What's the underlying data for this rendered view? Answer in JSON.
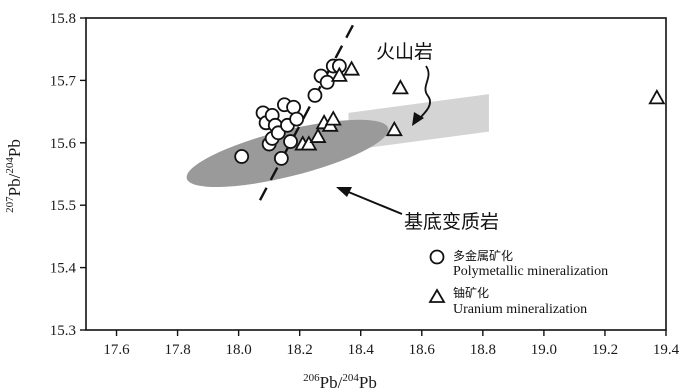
{
  "chart_data": {
    "type": "scatter",
    "x_axis": {
      "label_iso": "206",
      "label_elem": "Pb/",
      "label_iso2": "204",
      "label_elem2": "Pb",
      "range": [
        17.5,
        19.4
      ],
      "ticks": [
        "17.6",
        "17.8",
        "18.0",
        "18.2",
        "18.4",
        "18.6",
        "18.8",
        "19.0",
        "19.2",
        "19.4"
      ]
    },
    "y_axis": {
      "label_iso": "207",
      "label_elem": "Pb/",
      "label_iso2": "204",
      "label_elem2": "Pb",
      "range": [
        15.3,
        15.8
      ],
      "ticks": [
        "15.3",
        "15.4",
        "15.5",
        "15.6",
        "15.7",
        "15.8"
      ]
    },
    "series": [
      {
        "name": "多金属矿化 Polymetallic mineralization",
        "marker": "circle",
        "points": [
          [
            18.01,
            15.578
          ],
          [
            18.08,
            15.648
          ],
          [
            18.09,
            15.632
          ],
          [
            18.1,
            15.598
          ],
          [
            18.11,
            15.607
          ],
          [
            18.11,
            15.644
          ],
          [
            18.12,
            15.628
          ],
          [
            18.13,
            15.616
          ],
          [
            18.14,
            15.575
          ],
          [
            18.15,
            15.661
          ],
          [
            18.16,
            15.628
          ],
          [
            18.17,
            15.602
          ],
          [
            18.18,
            15.657
          ],
          [
            18.19,
            15.638
          ],
          [
            18.25,
            15.676
          ],
          [
            18.27,
            15.707
          ],
          [
            18.29,
            15.697
          ],
          [
            18.31,
            15.723
          ],
          [
            18.33,
            15.723
          ]
        ]
      },
      {
        "name": "铀矿化 Uranium mineralization",
        "marker": "triangle",
        "points": [
          [
            18.21,
            15.598
          ],
          [
            18.23,
            15.598
          ],
          [
            18.26,
            15.61
          ],
          [
            18.28,
            15.632
          ],
          [
            18.3,
            15.628
          ],
          [
            18.31,
            15.638
          ],
          [
            18.33,
            15.708
          ],
          [
            18.37,
            15.718
          ],
          [
            18.51,
            15.621
          ],
          [
            18.53,
            15.688
          ],
          [
            19.37,
            15.672
          ]
        ]
      }
    ],
    "fields": [
      {
        "name": "火山岩",
        "color": "#d4d4d4",
        "polygon": [
          [
            18.36,
            15.648
          ],
          [
            18.82,
            15.678
          ],
          [
            18.82,
            15.618
          ],
          [
            18.36,
            15.588
          ]
        ]
      },
      {
        "name": "基底变质岩",
        "color": "#9a9a9a",
        "ellipse": {
          "cx": 18.16,
          "cy": 15.583,
          "rx_data": 0.34,
          "ry_data": 0.037,
          "rotation_deg": -14
        }
      }
    ],
    "trend_line": {
      "style": "dashed",
      "from": [
        18.07,
        15.508
      ],
      "to": [
        18.4,
        15.812
      ]
    },
    "annotations": [
      {
        "text": "火山岩"
      },
      {
        "text": "基底变质岩"
      }
    ],
    "legend": {
      "position": "bottom-right",
      "items": [
        {
          "marker": "circle",
          "label_cn": "多金属矿化",
          "label_en": "Polymetallic mineralization"
        },
        {
          "marker": "triangle",
          "label_cn": "铀矿化",
          "label_en": "Uranium mineralization"
        }
      ]
    },
    "grid": false
  }
}
